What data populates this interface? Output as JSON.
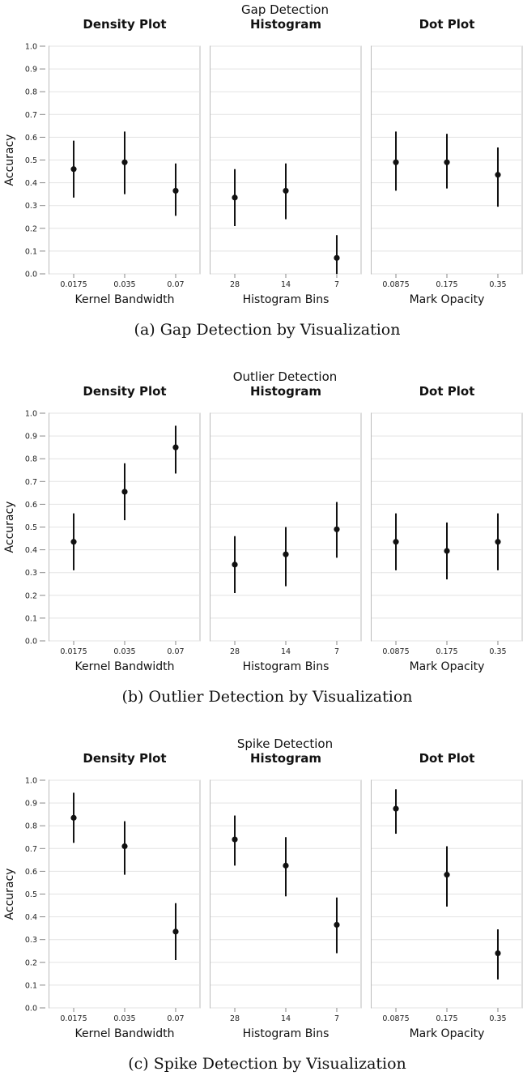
{
  "chart_data": [
    {
      "type": "scatter",
      "title": "Gap Detection",
      "caption": "(a) Gap Detection by Visualization",
      "ylabel": "Accuracy",
      "ylim": [
        0,
        1
      ],
      "yticks": [
        "0.0",
        "0.1",
        "0.2",
        "0.3",
        "0.4",
        "0.5",
        "0.6",
        "0.7",
        "0.8",
        "0.9",
        "1.0"
      ],
      "grid": true,
      "panels": [
        {
          "title": "Density Plot",
          "xlabel": "Kernel Bandwidth",
          "categories": [
            "0.0175",
            "0.035",
            "0.07"
          ],
          "values": [
            0.46,
            0.49,
            0.365
          ],
          "lower": [
            0.335,
            0.35,
            0.255
          ],
          "upper": [
            0.585,
            0.625,
            0.485
          ]
        },
        {
          "title": "Histogram",
          "xlabel": "Histogram Bins",
          "categories": [
            "28",
            "14",
            "7"
          ],
          "values": [
            0.335,
            0.365,
            0.07
          ],
          "lower": [
            0.21,
            0.24,
            0.0
          ],
          "upper": [
            0.46,
            0.485,
            0.17
          ]
        },
        {
          "title": "Dot Plot",
          "xlabel": "Mark Opacity",
          "categories": [
            "0.0875",
            "0.175",
            "0.35"
          ],
          "values": [
            0.49,
            0.49,
            0.435
          ],
          "lower": [
            0.365,
            0.375,
            0.295
          ],
          "upper": [
            0.625,
            0.615,
            0.555
          ]
        }
      ]
    },
    {
      "type": "scatter",
      "title": "Outlier Detection",
      "caption": "(b) Outlier Detection by Visualization",
      "ylabel": "Accuracy",
      "ylim": [
        0,
        1
      ],
      "yticks": [
        "0.0",
        "0.1",
        "0.2",
        "0.3",
        "0.4",
        "0.5",
        "0.6",
        "0.7",
        "0.8",
        "0.9",
        "1.0"
      ],
      "grid": true,
      "panels": [
        {
          "title": "Density Plot",
          "xlabel": "Kernel Bandwidth",
          "categories": [
            "0.0175",
            "0.035",
            "0.07"
          ],
          "values": [
            0.435,
            0.655,
            0.85
          ],
          "lower": [
            0.31,
            0.53,
            0.735
          ],
          "upper": [
            0.56,
            0.78,
            0.945
          ]
        },
        {
          "title": "Histogram",
          "xlabel": "Histogram Bins",
          "categories": [
            "28",
            "14",
            "7"
          ],
          "values": [
            0.335,
            0.38,
            0.49
          ],
          "lower": [
            0.21,
            0.24,
            0.365
          ],
          "upper": [
            0.46,
            0.5,
            0.61
          ]
        },
        {
          "title": "Dot Plot",
          "xlabel": "Mark Opacity",
          "categories": [
            "0.0875",
            "0.175",
            "0.35"
          ],
          "values": [
            0.435,
            0.395,
            0.435
          ],
          "lower": [
            0.31,
            0.27,
            0.31
          ],
          "upper": [
            0.56,
            0.52,
            0.56
          ]
        }
      ]
    },
    {
      "type": "scatter",
      "title": "Spike Detection",
      "caption": "(c) Spike Detection by Visualization",
      "ylabel": "Accuracy",
      "ylim": [
        0,
        1
      ],
      "yticks": [
        "0.0",
        "0.1",
        "0.2",
        "0.3",
        "0.4",
        "0.5",
        "0.6",
        "0.7",
        "0.8",
        "0.9",
        "1.0"
      ],
      "grid": true,
      "panels": [
        {
          "title": "Density Plot",
          "xlabel": "Kernel Bandwidth",
          "categories": [
            "0.0175",
            "0.035",
            "0.07"
          ],
          "values": [
            0.835,
            0.71,
            0.335
          ],
          "lower": [
            0.725,
            0.585,
            0.21
          ],
          "upper": [
            0.945,
            0.82,
            0.46
          ]
        },
        {
          "title": "Histogram",
          "xlabel": "Histogram Bins",
          "categories": [
            "28",
            "14",
            "7"
          ],
          "values": [
            0.74,
            0.625,
            0.365
          ],
          "lower": [
            0.625,
            0.49,
            0.24
          ],
          "upper": [
            0.845,
            0.75,
            0.485
          ]
        },
        {
          "title": "Dot Plot",
          "xlabel": "Mark Opacity",
          "categories": [
            "0.0875",
            "0.175",
            "0.35"
          ],
          "values": [
            0.875,
            0.585,
            0.24
          ],
          "lower": [
            0.765,
            0.445,
            0.125
          ],
          "upper": [
            0.96,
            0.71,
            0.345
          ]
        }
      ]
    }
  ]
}
